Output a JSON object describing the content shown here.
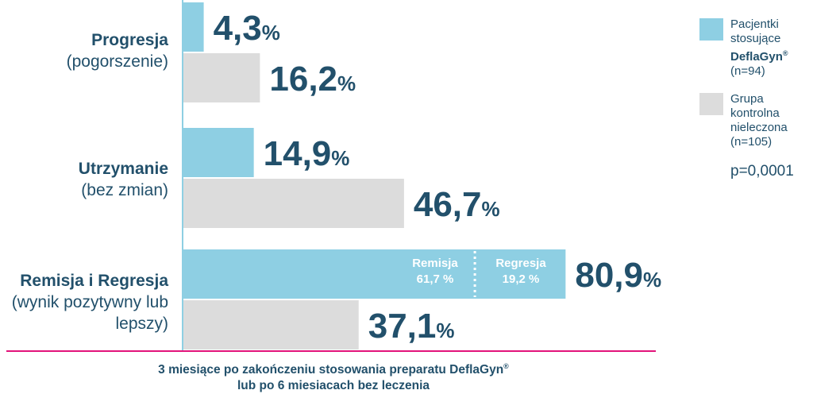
{
  "chart_data": {
    "type": "bar",
    "orientation": "horizontal",
    "categories": [
      {
        "title": "Progresja",
        "subtitle": "(pogorszenie)"
      },
      {
        "title": "Utrzymanie",
        "subtitle": "(bez zmian)"
      },
      {
        "title": "Remisja i Regresja",
        "subtitle": "(wynik pozytywny lub lepszy)"
      }
    ],
    "series": [
      {
        "name": "Pacjentki stosujące DeflaGyn® (n=94)",
        "color": "#8ecfe3",
        "values": [
          4.3,
          14.9,
          80.9
        ],
        "labels": [
          "4,3",
          "14,9",
          "80,9"
        ]
      },
      {
        "name": "Grupa kontrolna nieleczona (n=105)",
        "color": "#dcdcdc",
        "values": [
          16.2,
          46.7,
          37.1
        ],
        "labels": [
          "16,2",
          "46,7",
          "37,1"
        ]
      }
    ],
    "unit": "%",
    "segments": [
      {
        "title": "Remisja",
        "value_label": "61,7 %",
        "value": 61.7
      },
      {
        "title": "Regresja",
        "value_label": "19,2 %",
        "value": 19.2
      }
    ],
    "xlim": [
      0,
      100
    ],
    "grid": false,
    "legend_position": "right"
  },
  "legend": {
    "item1_line1": "Pacjentki",
    "item1_line2": "stosujące",
    "item1_brand": "DeflaGyn",
    "item1_reg": "®",
    "item1_n": "(n=94)",
    "item2_line1": "Grupa",
    "item2_line2": "kontrolna",
    "item2_line3": "nieleczona",
    "item2_n": "(n=105)",
    "pvalue": "p=0,0001"
  },
  "footnote": {
    "line1": "3 miesiące po zakończeniu stosowania preparatu DeflaGyn",
    "reg": "®",
    "line2": "lub  po 6 miesiacach bez leczenia"
  },
  "colors": {
    "accent": "#22506b",
    "treated": "#8ecfe3",
    "control": "#dcdcdc",
    "axis": "#8ecfe3",
    "baseline": "#e2137a"
  }
}
